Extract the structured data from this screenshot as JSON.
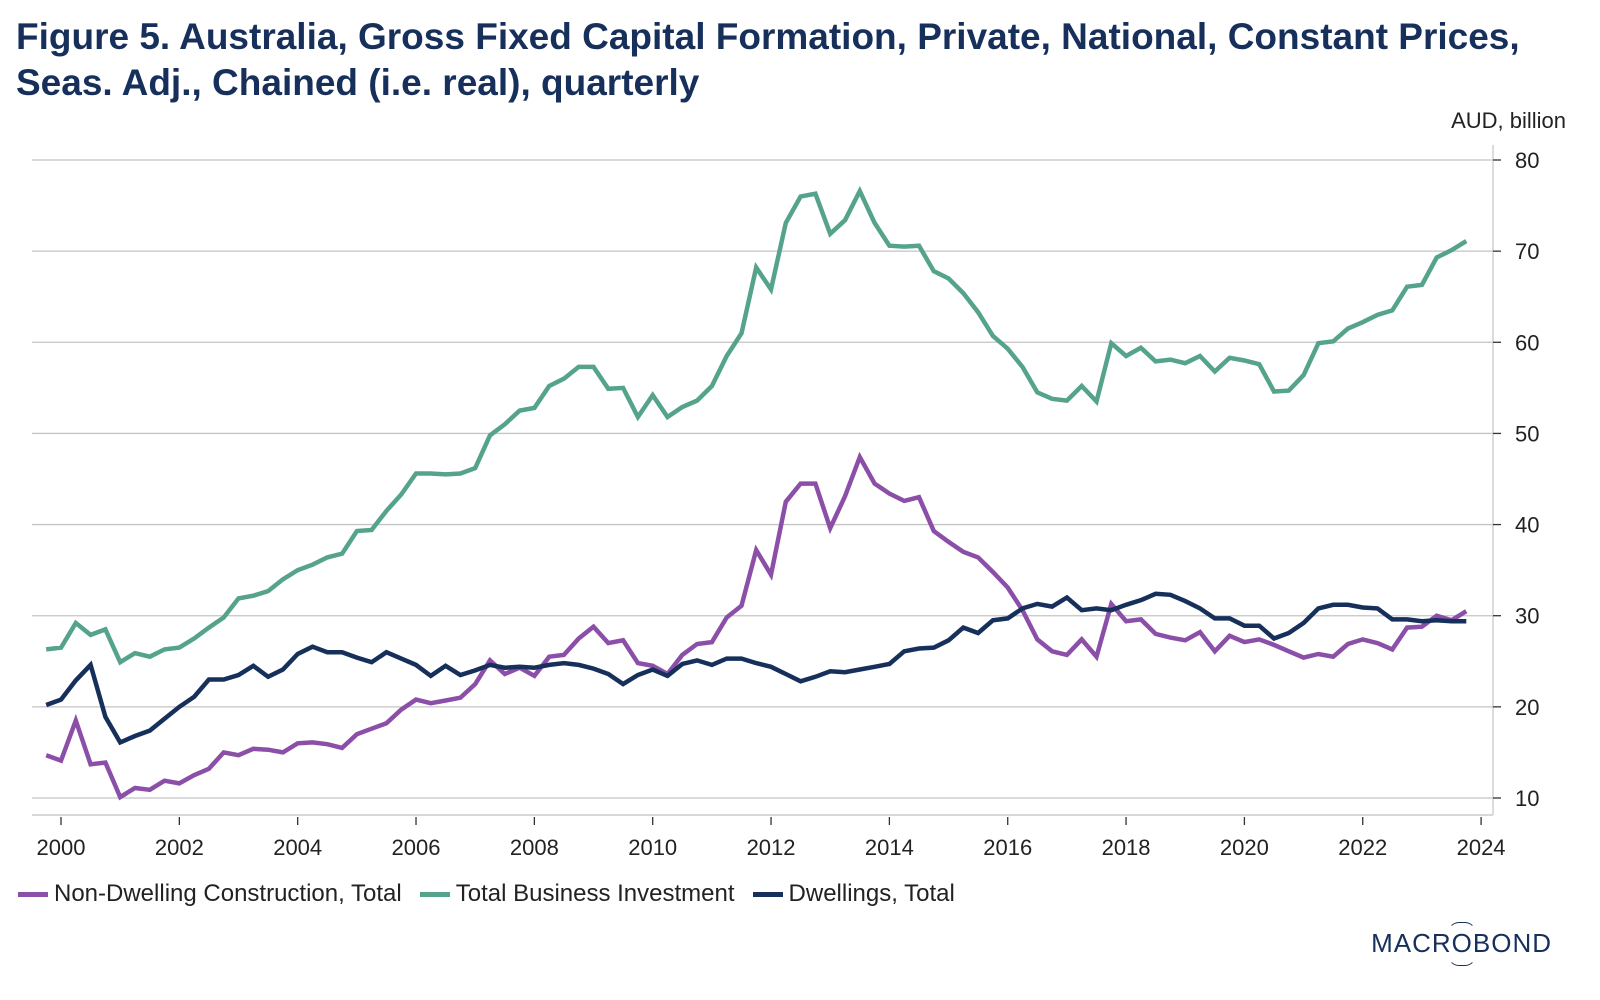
{
  "title": "Figure 5. Australia, Gross Fixed Capital Formation, Private, National, Constant Prices, Seas. Adj., Chained (i.e. real), quarterly",
  "brand": "MACROBOND",
  "chart_data": {
    "type": "line",
    "title": "Figure 5. Australia, Gross Fixed Capital Formation, Private, National, Constant Prices, Seas. Adj., Chained (i.e. real), quarterly",
    "xlabel": "",
    "ylabel": "AUD, billion",
    "y_axis_position": "right",
    "xlim": [
      1999.5,
      2024.3
    ],
    "ylim": [
      8,
      82
    ],
    "x_ticks": [
      2000,
      2002,
      2004,
      2006,
      2008,
      2010,
      2012,
      2014,
      2016,
      2018,
      2020,
      2022,
      2024
    ],
    "x_tick_labels": [
      "2000",
      "2002",
      "2004",
      "2006",
      "2008",
      "2010",
      "2012",
      "2014",
      "2016",
      "2018",
      "2020",
      "2022",
      "2024"
    ],
    "y_ticks": [
      10,
      20,
      30,
      40,
      50,
      60,
      70,
      80
    ],
    "y_tick_labels": [
      "10",
      "20",
      "30",
      "40",
      "50",
      "60",
      "70",
      "80"
    ],
    "grid": "horizontal",
    "legend": "bottom-left",
    "x_start": 1999.75,
    "x_step": 0.25,
    "series": [
      {
        "name": "Non-Dwelling Construction, Total",
        "color": "#8b4fa8",
        "values": [
          14.7,
          14.1,
          18.5,
          13.7,
          13.9,
          10.1,
          11.1,
          10.9,
          11.9,
          11.6,
          12.5,
          13.2,
          15.0,
          14.7,
          15.4,
          15.3,
          15.0,
          16.0,
          16.1,
          15.9,
          15.5,
          17.0,
          17.6,
          18.2,
          19.7,
          20.8,
          20.4,
          20.7,
          21.0,
          22.5,
          25.1,
          23.6,
          24.3,
          23.4,
          25.5,
          25.7,
          27.5,
          28.8,
          27.0,
          27.3,
          24.8,
          24.5,
          23.6,
          25.7,
          26.9,
          27.1,
          29.8,
          31.1,
          37.2,
          34.5,
          42.5,
          44.5,
          44.5,
          39.6,
          43.1,
          47.4,
          44.5,
          43.4,
          42.6,
          43.0,
          39.3,
          38.1,
          37.0,
          36.4,
          34.8,
          33.1,
          30.6,
          27.4,
          26.1,
          25.7,
          27.4,
          25.5,
          31.3,
          29.4,
          29.6,
          28.0,
          27.6,
          27.3,
          28.2,
          26.1,
          27.8,
          27.1,
          27.4,
          26.8,
          26.1,
          25.4,
          25.8,
          25.5,
          26.9,
          27.4,
          27.0,
          26.3,
          28.7,
          28.8,
          30.0,
          29.5,
          30.5
        ]
      },
      {
        "name": "Total Business Investment",
        "color": "#55a38c",
        "values": [
          26.3,
          26.5,
          29.2,
          27.9,
          28.5,
          24.9,
          25.9,
          25.5,
          26.3,
          26.5,
          27.5,
          28.7,
          29.8,
          31.9,
          32.2,
          32.7,
          34.0,
          35.0,
          35.6,
          36.4,
          36.8,
          39.3,
          39.4,
          41.5,
          43.3,
          45.6,
          45.6,
          45.5,
          45.6,
          46.2,
          49.8,
          51.0,
          52.5,
          52.8,
          55.2,
          56.0,
          57.3,
          57.3,
          54.9,
          55.0,
          51.8,
          54.2,
          51.8,
          52.9,
          53.6,
          55.2,
          58.5,
          61.0,
          68.2,
          65.8,
          73.1,
          76.0,
          76.3,
          71.9,
          73.4,
          76.6,
          73.1,
          70.6,
          70.5,
          70.6,
          67.8,
          67.0,
          65.4,
          63.3,
          60.7,
          59.3,
          57.3,
          54.5,
          53.8,
          53.6,
          55.2,
          53.5,
          59.9,
          58.5,
          59.4,
          57.9,
          58.1,
          57.7,
          58.5,
          56.8,
          58.3,
          58.0,
          57.6,
          54.6,
          54.7,
          56.4,
          59.9,
          60.1,
          61.5,
          62.2,
          63.0,
          63.5,
          66.1,
          66.3,
          69.3,
          70.1,
          71.1
        ]
      },
      {
        "name": "Dwellings, Total",
        "color": "#16305b",
        "values": [
          20.2,
          20.8,
          22.9,
          24.6,
          18.9,
          16.1,
          16.8,
          17.4,
          18.7,
          20.0,
          21.1,
          23.0,
          23.0,
          23.5,
          24.5,
          23.3,
          24.1,
          25.8,
          26.6,
          26.0,
          26.0,
          25.4,
          24.9,
          26.0,
          25.3,
          24.6,
          23.4,
          24.5,
          23.5,
          24.0,
          24.6,
          24.3,
          24.4,
          24.3,
          24.6,
          24.8,
          24.6,
          24.2,
          23.6,
          22.5,
          23.5,
          24.1,
          23.4,
          24.7,
          25.1,
          24.6,
          25.3,
          25.3,
          24.8,
          24.4,
          23.6,
          22.8,
          23.3,
          23.9,
          23.8,
          24.1,
          24.4,
          24.7,
          26.1,
          26.4,
          26.5,
          27.3,
          28.7,
          28.1,
          29.5,
          29.7,
          30.8,
          31.3,
          31.0,
          32.0,
          30.6,
          30.8,
          30.6,
          31.2,
          31.7,
          32.4,
          32.3,
          31.6,
          30.8,
          29.7,
          29.7,
          28.9,
          28.9,
          27.5,
          28.1,
          29.2,
          30.8,
          31.2,
          31.2,
          30.9,
          30.8,
          29.6,
          29.6,
          29.4,
          29.5,
          29.4,
          29.4
        ]
      }
    ]
  }
}
